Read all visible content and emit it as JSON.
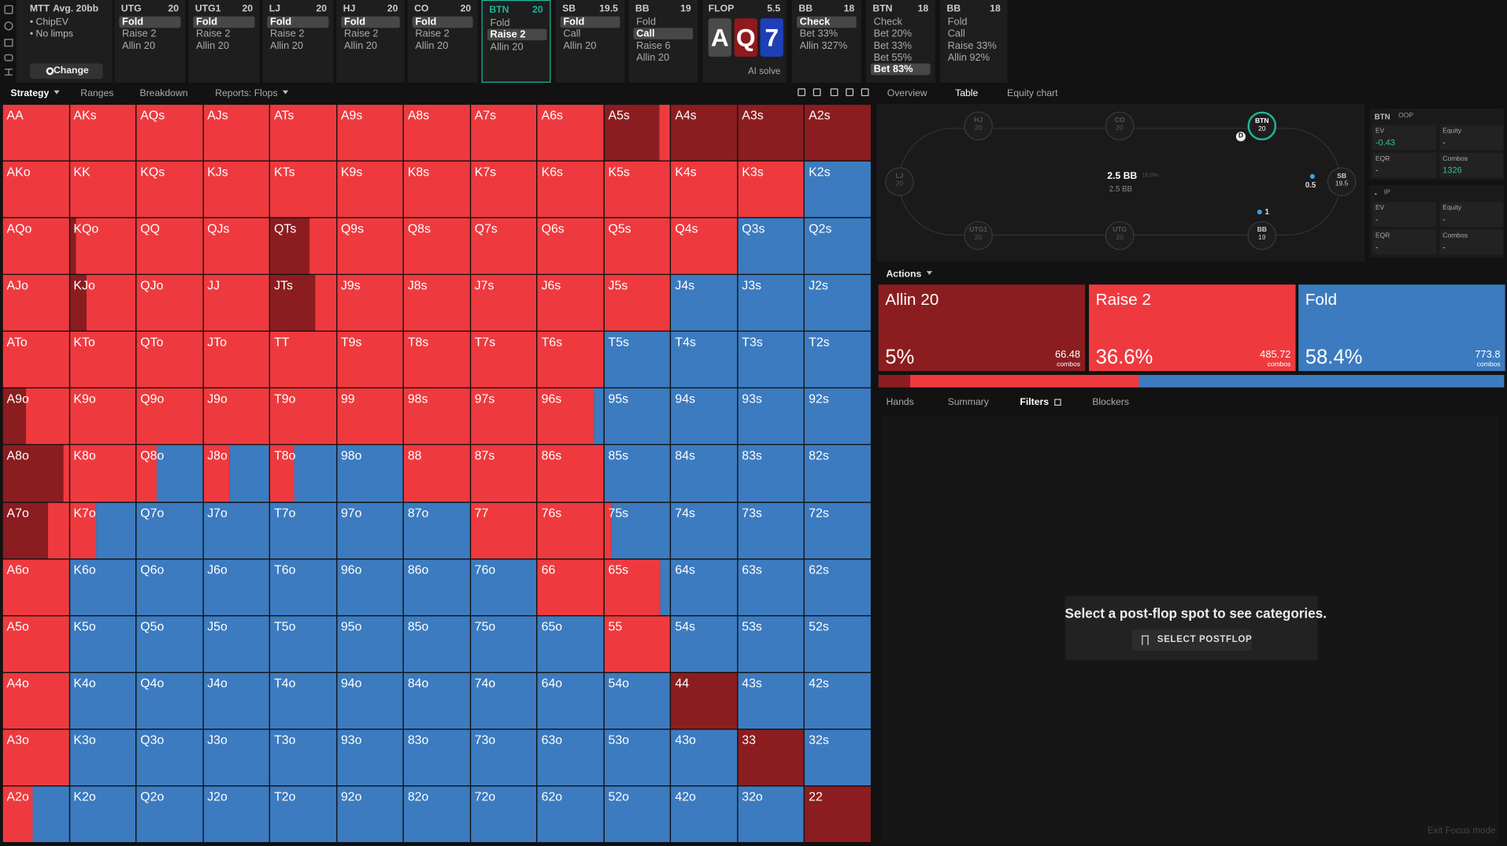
{
  "header": {
    "format": "MTT",
    "avg": "Avg. 20bb",
    "options": [
      "ChipEV",
      "No limps"
    ],
    "change": "Change"
  },
  "nodes": [
    {
      "pos": "UTG",
      "stack": "20",
      "actions": [
        "Fold",
        "Raise 2",
        "Allin 20"
      ],
      "selected": 0
    },
    {
      "pos": "UTG1",
      "stack": "20",
      "actions": [
        "Fold",
        "Raise 2",
        "Allin 20"
      ],
      "selected": 0
    },
    {
      "pos": "LJ",
      "stack": "20",
      "actions": [
        "Fold",
        "Raise 2",
        "Allin 20"
      ],
      "selected": 0
    },
    {
      "pos": "HJ",
      "stack": "20",
      "actions": [
        "Fold",
        "Raise 2",
        "Allin 20"
      ],
      "selected": 0
    },
    {
      "pos": "CO",
      "stack": "20",
      "actions": [
        "Fold",
        "Raise 2",
        "Allin 20"
      ],
      "selected": 0
    },
    {
      "pos": "BTN",
      "stack": "20",
      "actions": [
        "Fold",
        "Raise 2",
        "Allin 20"
      ],
      "selected": 1,
      "current": true
    },
    {
      "pos": "SB",
      "stack": "19.5",
      "actions": [
        "Fold",
        "Call",
        "Allin 20"
      ],
      "selected": 0
    },
    {
      "pos": "BB",
      "stack": "19",
      "actions": [
        "Fold",
        "Call",
        "Raise 6",
        "Allin 20"
      ],
      "selected": 1
    }
  ],
  "flop": {
    "label": "FLOP",
    "pot": "5.5",
    "cards": [
      "A",
      "Q",
      "7"
    ],
    "colors": [
      "#4a4a4a",
      "#8e1a1f",
      "#1f3fb8"
    ],
    "ai": "AI solve"
  },
  "postflop_nodes": [
    {
      "pos": "BB",
      "stack": "18",
      "actions": [
        "Check",
        "Bet 33%",
        "Allin 327%"
      ],
      "selected": 0
    },
    {
      "pos": "BTN",
      "stack": "18",
      "actions": [
        "Check",
        "Bet 20%",
        "Bet 33%",
        "Bet 55%",
        "Bet 83%"
      ],
      "selected": 4
    },
    {
      "pos": "BB",
      "stack": "18",
      "actions": [
        "Fold",
        "Call",
        "Raise 33%",
        "Allin 92%"
      ]
    }
  ],
  "toolbar": {
    "tabs": [
      "Strategy",
      "Ranges",
      "Breakdown",
      "Reports: Flops"
    ],
    "active": 0
  },
  "grid": {
    "colors": [
      "#8b1d20",
      "#ee3a3f",
      "#3c7bbf"
    ],
    "hands": [
      [
        "AA",
        "AKs",
        "AQs",
        "AJs",
        "ATs",
        "A9s",
        "A8s",
        "A7s",
        "A6s",
        "A5s",
        "A4s",
        "A3s",
        "A2s"
      ],
      [
        "AKo",
        "KK",
        "KQs",
        "KJs",
        "KTs",
        "K9s",
        "K8s",
        "K7s",
        "K6s",
        "K5s",
        "K4s",
        "K3s",
        "K2s"
      ],
      [
        "AQo",
        "KQo",
        "QQ",
        "QJs",
        "QTs",
        "Q9s",
        "Q8s",
        "Q7s",
        "Q6s",
        "Q5s",
        "Q4s",
        "Q3s",
        "Q2s"
      ],
      [
        "AJo",
        "KJo",
        "QJo",
        "JJ",
        "JTs",
        "J9s",
        "J8s",
        "J7s",
        "J6s",
        "J5s",
        "J4s",
        "J3s",
        "J2s"
      ],
      [
        "ATo",
        "KTo",
        "QTo",
        "JTo",
        "TT",
        "T9s",
        "T8s",
        "T7s",
        "T6s",
        "T5s",
        "T4s",
        "T3s",
        "T2s"
      ],
      [
        "A9o",
        "K9o",
        "Q9o",
        "J9o",
        "T9o",
        "99",
        "98s",
        "97s",
        "96s",
        "95s",
        "94s",
        "93s",
        "92s"
      ],
      [
        "A8o",
        "K8o",
        "Q8o",
        "J8o",
        "T8o",
        "98o",
        "88",
        "87s",
        "86s",
        "85s",
        "84s",
        "83s",
        "82s"
      ],
      [
        "A7o",
        "K7o",
        "Q7o",
        "J7o",
        "T7o",
        "97o",
        "87o",
        "77",
        "76s",
        "75s",
        "74s",
        "73s",
        "72s"
      ],
      [
        "A6o",
        "K6o",
        "Q6o",
        "J6o",
        "T6o",
        "96o",
        "86o",
        "76o",
        "66",
        "65s",
        "64s",
        "63s",
        "62s"
      ],
      [
        "A5o",
        "K5o",
        "Q5o",
        "J5o",
        "T5o",
        "95o",
        "85o",
        "75o",
        "65o",
        "55",
        "54s",
        "53s",
        "52s"
      ],
      [
        "A4o",
        "K4o",
        "Q4o",
        "J4o",
        "T4o",
        "94o",
        "84o",
        "74o",
        "64o",
        "54o",
        "44",
        "43s",
        "42s"
      ],
      [
        "A3o",
        "K3o",
        "Q3o",
        "J3o",
        "T3o",
        "93o",
        "83o",
        "73o",
        "63o",
        "53o",
        "43o",
        "33",
        "32s"
      ],
      [
        "A2o",
        "K2o",
        "Q2o",
        "J2o",
        "T2o",
        "92o",
        "82o",
        "72o",
        "62o",
        "52o",
        "42o",
        "32o",
        "22"
      ]
    ],
    "mix": [
      [
        [
          0,
          100,
          0
        ],
        [
          0,
          100,
          0
        ],
        [
          0,
          100,
          0
        ],
        [
          0,
          100,
          0
        ],
        [
          0,
          100,
          0
        ],
        [
          0,
          100,
          0
        ],
        [
          0,
          100,
          0
        ],
        [
          0,
          100,
          0
        ],
        [
          0,
          100,
          0
        ],
        [
          83,
          17,
          0
        ],
        [
          100,
          0,
          0
        ],
        [
          100,
          0,
          0
        ],
        [
          100,
          0,
          0
        ]
      ],
      [
        [
          0,
          100,
          0
        ],
        [
          0,
          100,
          0
        ],
        [
          0,
          100,
          0
        ],
        [
          0,
          100,
          0
        ],
        [
          0,
          100,
          0
        ],
        [
          0,
          100,
          0
        ],
        [
          0,
          100,
          0
        ],
        [
          0,
          100,
          0
        ],
        [
          0,
          100,
          0
        ],
        [
          0,
          100,
          0
        ],
        [
          0,
          100,
          0
        ],
        [
          0,
          100,
          0
        ],
        [
          0,
          0,
          100
        ]
      ],
      [
        [
          0,
          100,
          0
        ],
        [
          10,
          90,
          0
        ],
        [
          0,
          100,
          0
        ],
        [
          0,
          100,
          0
        ],
        [
          60,
          40,
          0
        ],
        [
          0,
          100,
          0
        ],
        [
          0,
          100,
          0
        ],
        [
          0,
          100,
          0
        ],
        [
          0,
          100,
          0
        ],
        [
          0,
          100,
          0
        ],
        [
          0,
          100,
          0
        ],
        [
          0,
          0,
          100
        ],
        [
          0,
          0,
          100
        ]
      ],
      [
        [
          0,
          100,
          0
        ],
        [
          25,
          75,
          0
        ],
        [
          0,
          100,
          0
        ],
        [
          0,
          100,
          0
        ],
        [
          68,
          32,
          0
        ],
        [
          0,
          100,
          0
        ],
        [
          0,
          100,
          0
        ],
        [
          0,
          100,
          0
        ],
        [
          0,
          100,
          0
        ],
        [
          0,
          100,
          0
        ],
        [
          0,
          0,
          100
        ],
        [
          0,
          0,
          100
        ],
        [
          0,
          0,
          100
        ]
      ],
      [
        [
          0,
          100,
          0
        ],
        [
          0,
          100,
          0
        ],
        [
          0,
          100,
          0
        ],
        [
          0,
          100,
          0
        ],
        [
          0,
          100,
          0
        ],
        [
          0,
          100,
          0
        ],
        [
          0,
          100,
          0
        ],
        [
          0,
          100,
          0
        ],
        [
          0,
          100,
          0
        ],
        [
          0,
          0,
          100
        ],
        [
          0,
          0,
          100
        ],
        [
          0,
          0,
          100
        ],
        [
          0,
          0,
          100
        ]
      ],
      [
        [
          35,
          65,
          0
        ],
        [
          0,
          100,
          0
        ],
        [
          0,
          100,
          0
        ],
        [
          0,
          100,
          0
        ],
        [
          0,
          100,
          0
        ],
        [
          0,
          100,
          0
        ],
        [
          0,
          100,
          0
        ],
        [
          0,
          100,
          0
        ],
        [
          0,
          85,
          15
        ],
        [
          0,
          0,
          100
        ],
        [
          0,
          0,
          100
        ],
        [
          0,
          0,
          100
        ],
        [
          0,
          0,
          100
        ]
      ],
      [
        [
          92,
          8,
          0
        ],
        [
          0,
          100,
          0
        ],
        [
          0,
          30,
          70
        ],
        [
          0,
          40,
          60
        ],
        [
          0,
          37,
          63
        ],
        [
          0,
          0,
          100
        ],
        [
          0,
          100,
          0
        ],
        [
          0,
          100,
          0
        ],
        [
          0,
          100,
          0
        ],
        [
          0,
          0,
          100
        ],
        [
          0,
          0,
          100
        ],
        [
          0,
          0,
          100
        ],
        [
          0,
          0,
          100
        ]
      ],
      [
        [
          68,
          32,
          0
        ],
        [
          0,
          40,
          60
        ],
        [
          0,
          0,
          100
        ],
        [
          0,
          0,
          100
        ],
        [
          0,
          0,
          100
        ],
        [
          0,
          0,
          100
        ],
        [
          0,
          0,
          100
        ],
        [
          0,
          100,
          0
        ],
        [
          0,
          100,
          0
        ],
        [
          0,
          10,
          90
        ],
        [
          0,
          0,
          100
        ],
        [
          0,
          0,
          100
        ],
        [
          0,
          0,
          100
        ]
      ],
      [
        [
          0,
          100,
          0
        ],
        [
          0,
          0,
          100
        ],
        [
          0,
          0,
          100
        ],
        [
          0,
          0,
          100
        ],
        [
          0,
          0,
          100
        ],
        [
          0,
          0,
          100
        ],
        [
          0,
          0,
          100
        ],
        [
          0,
          0,
          100
        ],
        [
          0,
          100,
          0
        ],
        [
          0,
          85,
          15
        ],
        [
          0,
          0,
          100
        ],
        [
          0,
          0,
          100
        ],
        [
          0,
          0,
          100
        ]
      ],
      [
        [
          0,
          100,
          0
        ],
        [
          0,
          0,
          100
        ],
        [
          0,
          0,
          100
        ],
        [
          0,
          0,
          100
        ],
        [
          0,
          0,
          100
        ],
        [
          0,
          0,
          100
        ],
        [
          0,
          0,
          100
        ],
        [
          0,
          0,
          100
        ],
        [
          0,
          0,
          100
        ],
        [
          0,
          100,
          0
        ],
        [
          0,
          0,
          100
        ],
        [
          0,
          0,
          100
        ],
        [
          0,
          0,
          100
        ]
      ],
      [
        [
          0,
          100,
          0
        ],
        [
          0,
          0,
          100
        ],
        [
          0,
          0,
          100
        ],
        [
          0,
          0,
          100
        ],
        [
          0,
          0,
          100
        ],
        [
          0,
          0,
          100
        ],
        [
          0,
          0,
          100
        ],
        [
          0,
          0,
          100
        ],
        [
          0,
          0,
          100
        ],
        [
          0,
          0,
          100
        ],
        [
          100,
          0,
          0
        ],
        [
          0,
          0,
          100
        ],
        [
          0,
          0,
          100
        ]
      ],
      [
        [
          0,
          100,
          0
        ],
        [
          0,
          0,
          100
        ],
        [
          0,
          0,
          100
        ],
        [
          0,
          0,
          100
        ],
        [
          0,
          0,
          100
        ],
        [
          0,
          0,
          100
        ],
        [
          0,
          0,
          100
        ],
        [
          0,
          0,
          100
        ],
        [
          0,
          0,
          100
        ],
        [
          0,
          0,
          100
        ],
        [
          0,
          0,
          100
        ],
        [
          100,
          0,
          0
        ],
        [
          0,
          0,
          100
        ]
      ],
      [
        [
          0,
          45,
          55
        ],
        [
          0,
          0,
          100
        ],
        [
          0,
          0,
          100
        ],
        [
          0,
          0,
          100
        ],
        [
          0,
          0,
          100
        ],
        [
          0,
          0,
          100
        ],
        [
          0,
          0,
          100
        ],
        [
          0,
          0,
          100
        ],
        [
          0,
          0,
          100
        ],
        [
          0,
          0,
          100
        ],
        [
          0,
          0,
          100
        ],
        [
          0,
          0,
          100
        ],
        [
          100,
          0,
          0
        ]
      ]
    ]
  },
  "right_tabs": {
    "tabs": [
      "Overview",
      "Table",
      "Equity chart"
    ],
    "active": 1
  },
  "table": {
    "pot": "2.5 BB",
    "pot_pct": "16.0%",
    "pot_sub": "2.5 BB",
    "dealer": "D",
    "bets": [
      "0.5",
      "1"
    ],
    "active_seat": 2,
    "seats": [
      {
        "pos": "HJ",
        "stack": "20"
      },
      {
        "pos": "CO",
        "stack": "20"
      },
      {
        "pos": "BTN",
        "stack": "20"
      },
      {
        "pos": "LJ",
        "stack": "20"
      },
      {
        "pos": "SB",
        "stack": "19.5"
      },
      {
        "pos": "UTG1",
        "stack": "20"
      },
      {
        "pos": "UTG",
        "stack": "20"
      },
      {
        "pos": "BB",
        "stack": "19"
      }
    ]
  },
  "info": {
    "labels": [
      "EV",
      "Equity",
      "EQR",
      "Combos"
    ],
    "oop": {
      "player": "BTN",
      "role": "OOP",
      "values": [
        "-0.43",
        "-",
        "-",
        "1326"
      ]
    },
    "ip": {
      "player": "-",
      "role": "IP",
      "values": [
        "-",
        "-",
        "-",
        "-"
      ]
    }
  },
  "actions": {
    "label": "Actions",
    "unit": "combos",
    "items": [
      {
        "name": "Allin 20",
        "frequency": 5,
        "frequency_label": "5%",
        "combos": 66.48,
        "color": "#8b1d20"
      },
      {
        "name": "Raise 2",
        "frequency": 36.6,
        "frequency_label": "36.6%",
        "combos": 485.72,
        "color": "#ee3a3f"
      },
      {
        "name": "Fold",
        "frequency": 58.4,
        "frequency_label": "58.4%",
        "combos": 773.8,
        "color": "#3c7bbf"
      }
    ]
  },
  "lower_tabs": {
    "tabs": [
      "Hands",
      "Summary",
      "Filters",
      "Blockers"
    ],
    "active": 2
  },
  "empty": {
    "message": "Select a post-flop spot to see categories.",
    "button": "SELECT POSTFLOP"
  },
  "footer": "Exit Focus mode"
}
